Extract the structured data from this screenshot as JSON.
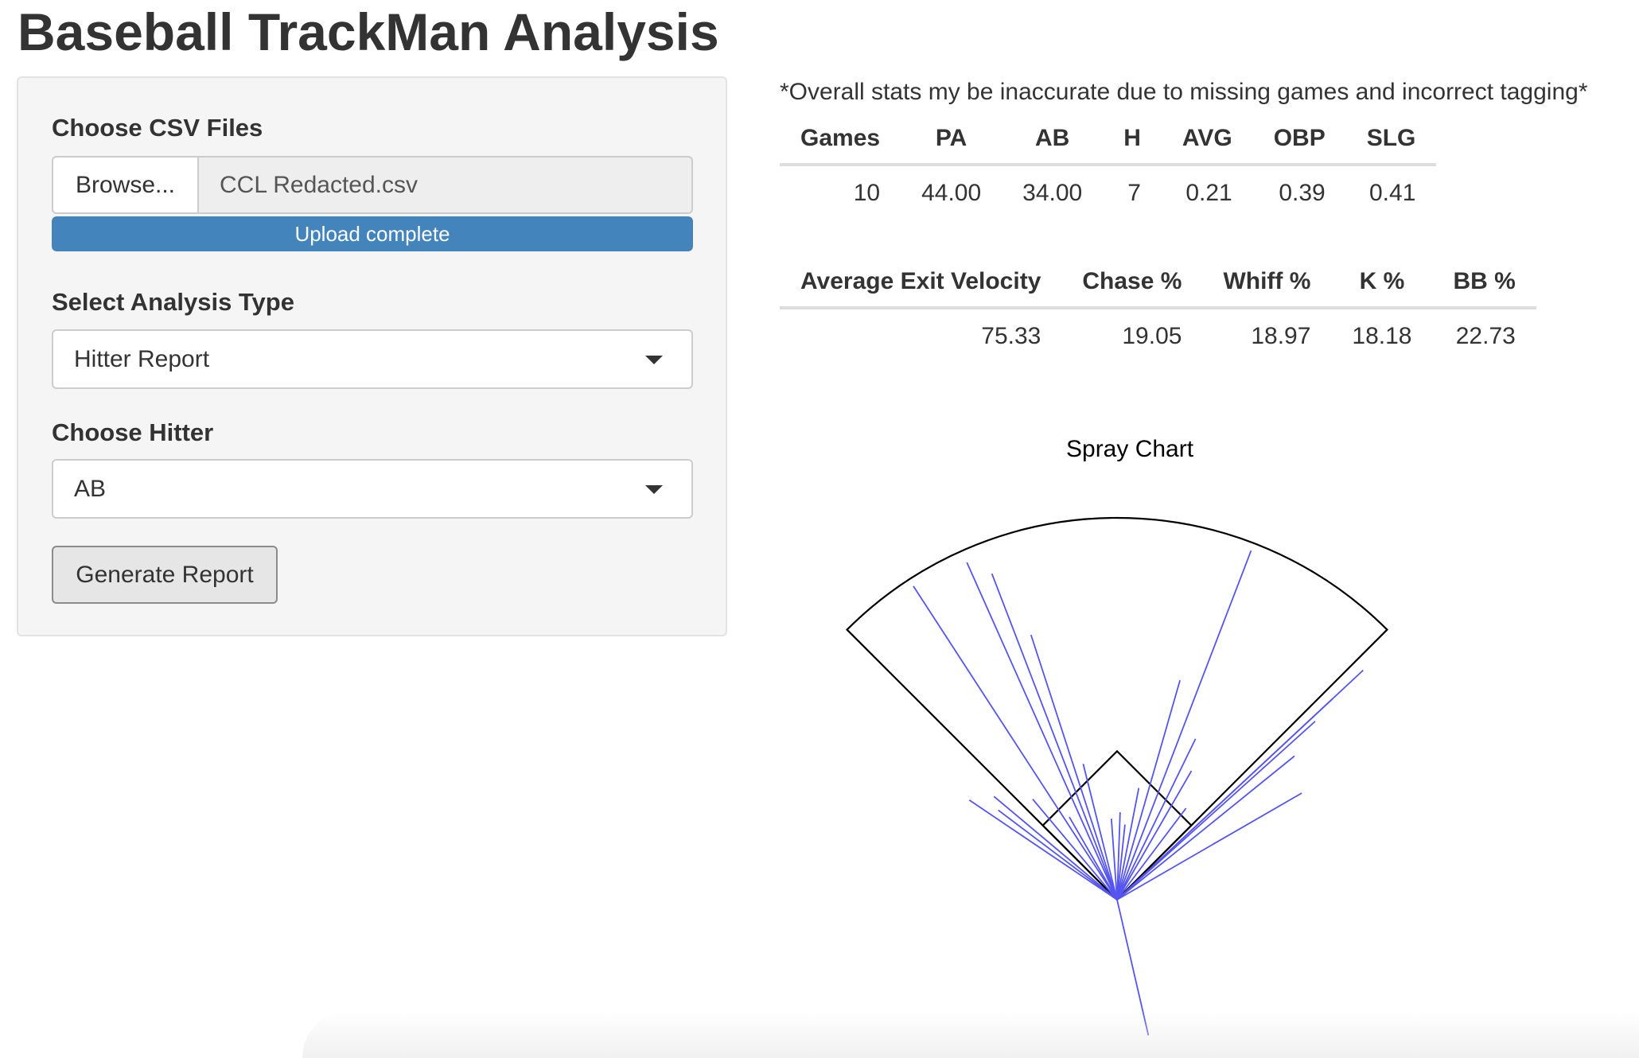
{
  "app": {
    "title": "Baseball TrackMan Analysis"
  },
  "sidebar": {
    "file_label": "Choose CSV Files",
    "browse_label": "Browse...",
    "file_name": "CCL Redacted.csv",
    "upload_status": "Upload complete",
    "upload_progress_percent": 100,
    "analysis_label": "Select Analysis Type",
    "analysis_value": "Hitter Report",
    "hitter_label": "Choose Hitter",
    "hitter_value": "AB",
    "generate_label": "Generate Report"
  },
  "main": {
    "note": "*Overall stats my be inaccurate due to missing games and incorrect tagging*",
    "stats_table_1": {
      "headers": [
        "Games",
        "PA",
        "AB",
        "H",
        "AVG",
        "OBP",
        "SLG"
      ],
      "row": [
        "10",
        "44.00",
        "34.00",
        "7",
        "0.21",
        "0.39",
        "0.41"
      ]
    },
    "stats_table_2": {
      "headers": [
        "Average Exit Velocity",
        "Chase %",
        "Whiff %",
        "K %",
        "BB %"
      ],
      "row": [
        "75.33",
        "19.05",
        "18.97",
        "18.18",
        "22.73"
      ]
    }
  },
  "chart_data": {
    "type": "scatter",
    "title": "Spray Chart",
    "line_color": "#5555ee",
    "field_color": "#000000",
    "hits": [
      {
        "angle": -33,
        "distance": 470
      },
      {
        "angle": -24,
        "distance": 464
      },
      {
        "angle": -21,
        "distance": 439
      },
      {
        "angle": -18,
        "distance": 350
      },
      {
        "angle": -56,
        "distance": 224
      },
      {
        "angle": -53,
        "distance": 187
      },
      {
        "angle": -50,
        "distance": 202
      },
      {
        "angle": -40,
        "distance": 165
      },
      {
        "angle": -30,
        "distance": 120
      },
      {
        "angle": -14,
        "distance": 176
      },
      {
        "angle": -4,
        "distance": 102
      },
      {
        "angle": 2,
        "distance": 110
      },
      {
        "angle": 6,
        "distance": 95
      },
      {
        "angle": 11,
        "distance": 143
      },
      {
        "angle": 16,
        "distance": 287
      },
      {
        "angle": 21,
        "distance": 470
      },
      {
        "angle": 26,
        "distance": 225
      },
      {
        "angle": 30,
        "distance": 187
      },
      {
        "angle": 37,
        "distance": 144
      },
      {
        "angle": 47,
        "distance": 423
      },
      {
        "angle": 47,
        "distance": 370
      },
      {
        "angle": 48,
        "distance": 335
      },
      {
        "angle": 51,
        "distance": 287
      },
      {
        "angle": 60,
        "distance": 268
      },
      {
        "angle": 167,
        "distance": 175
      }
    ]
  }
}
